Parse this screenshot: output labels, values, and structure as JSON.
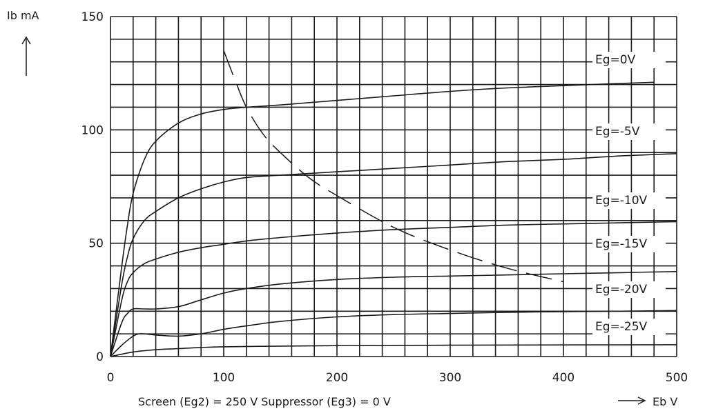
{
  "chart_data": {
    "type": "line",
    "title": "",
    "xlabel": "Screen (Eg2) = 250 V Suppressor (Eg3) = 0 V",
    "x_unit_label": "Eb V",
    "ylabel": "Ib mA",
    "xlim": [
      0,
      500
    ],
    "ylim": [
      0,
      150
    ],
    "x_ticks": [
      "0",
      "100",
      "200",
      "300",
      "400",
      "500"
    ],
    "y_ticks": [
      "0",
      "50",
      "100",
      "150"
    ],
    "grid": true,
    "series": [
      {
        "name": "Eg=0V",
        "x": [
          0,
          10,
          15,
          20,
          30,
          40,
          60,
          80,
          100,
          120,
          150,
          200,
          250,
          300,
          350,
          400,
          450,
          480
        ],
        "y": [
          0,
          40,
          58,
          72,
          87,
          95,
          103,
          107,
          109,
          110,
          111,
          113,
          115,
          117,
          118.5,
          119.5,
          120.5,
          121
        ]
      },
      {
        "name": "Eg=-5V",
        "x": [
          0,
          10,
          15,
          20,
          30,
          40,
          60,
          80,
          100,
          120,
          150,
          200,
          250,
          300,
          350,
          400,
          450,
          500
        ],
        "y": [
          0,
          32,
          44,
          52,
          60,
          64,
          70,
          74,
          77,
          79,
          80,
          81.5,
          83,
          84.5,
          86,
          87,
          88.5,
          89.5
        ]
      },
      {
        "name": "Eg=-10V",
        "x": [
          0,
          10,
          15,
          20,
          30,
          40,
          60,
          80,
          100,
          120,
          150,
          200,
          250,
          300,
          350,
          400,
          450,
          500
        ],
        "y": [
          0,
          25,
          33,
          37,
          41,
          43,
          46,
          48,
          49.5,
          51,
          52.5,
          54.5,
          56,
          57,
          58,
          58.5,
          59,
          59.5
        ]
      },
      {
        "name": "Eg=-15V",
        "x": [
          0,
          10,
          15,
          20,
          30,
          40,
          60,
          80,
          100,
          120,
          150,
          200,
          250,
          300,
          350,
          400,
          450,
          500
        ],
        "y": [
          0,
          15,
          19,
          21,
          21,
          21,
          22,
          25,
          28,
          30,
          32,
          34,
          35,
          35.5,
          36,
          36.5,
          37,
          37.5
        ]
      },
      {
        "name": "Eg=-20V",
        "x": [
          0,
          10,
          20,
          25,
          30,
          40,
          60,
          80,
          100,
          120,
          150,
          200,
          250,
          300,
          350,
          400,
          450,
          500
        ],
        "y": [
          0,
          5,
          9,
          10,
          10,
          9.5,
          9,
          10,
          12,
          13.5,
          15.5,
          17.5,
          18.5,
          19,
          19.5,
          19.8,
          20,
          20.3
        ]
      },
      {
        "name": "Eg=-25V",
        "x": [
          0,
          20,
          40,
          60,
          80,
          100,
          150,
          200,
          250,
          300,
          400,
          500
        ],
        "y": [
          0,
          2,
          3,
          3.5,
          4,
          4.3,
          4.6,
          4.8,
          4.9,
          5,
          5.1,
          5.2
        ]
      }
    ],
    "load_line": {
      "x": [
        100,
        110,
        120,
        135,
        150,
        175,
        200,
        250,
        300,
        350,
        400
      ],
      "y": [
        135,
        122,
        110,
        98,
        90,
        79,
        71,
        57,
        47,
        39,
        33
      ]
    }
  }
}
